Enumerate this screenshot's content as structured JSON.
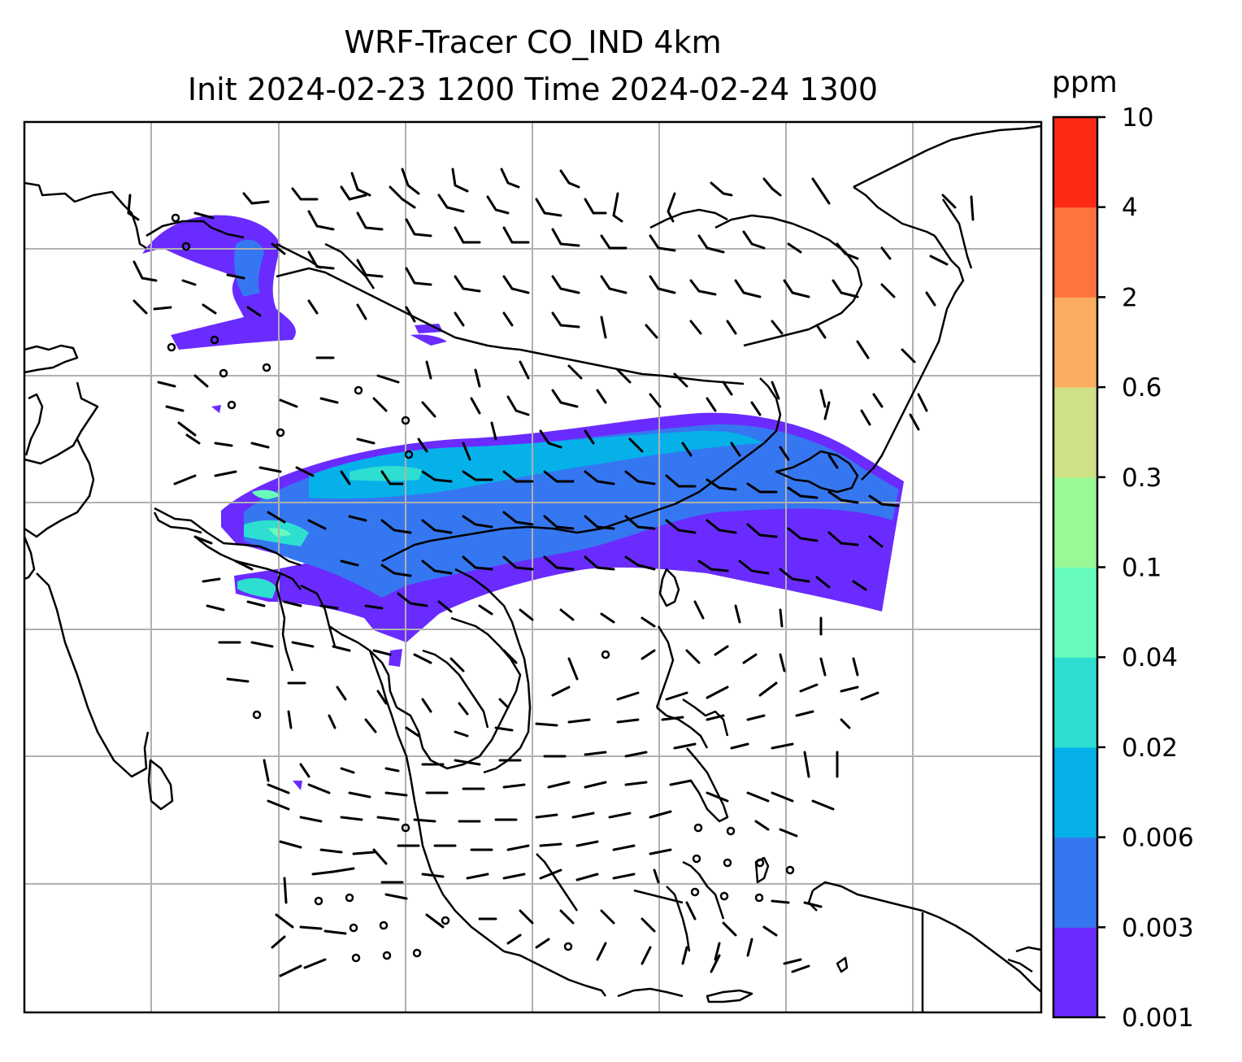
{
  "title": {
    "line1": "WRF-Tracer CO_IND 4km",
    "line2": "Init 2024-02-23 1200 Time 2024-02-24 1300"
  },
  "colorbar": {
    "unit": "ppm",
    "levels": [
      "0.001",
      "0.003",
      "0.006",
      "0.02",
      "0.04",
      "0.1",
      "0.3",
      "0.6",
      "2",
      "4",
      "10"
    ],
    "colors": [
      "#6a2bff",
      "#3577f0",
      "#06b1ea",
      "#2edfd1",
      "#68fcbc",
      "#98f996",
      "#cfe186",
      "#fcae60",
      "#ff733e",
      "#ff2a16"
    ]
  },
  "map": {
    "grid": true,
    "grid_color": "#b0b0b0",
    "coastline_color": "#000000",
    "wind_barb_color": "#000000"
  }
}
